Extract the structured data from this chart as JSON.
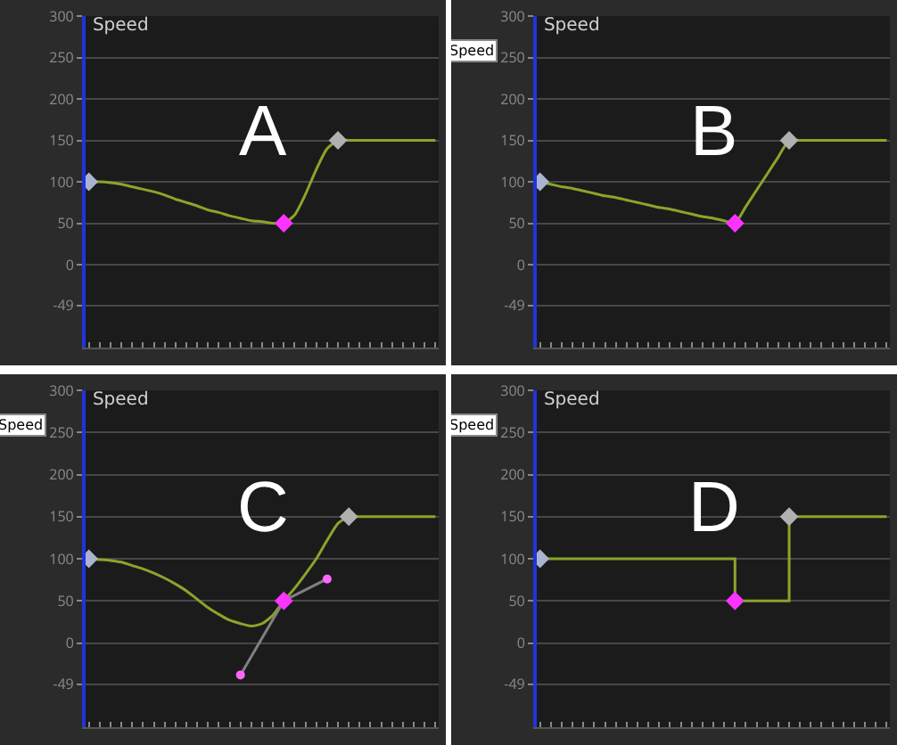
{
  "chart_data": [
    {
      "type": "line",
      "title": "Speed",
      "annotations": [
        "A"
      ],
      "categories": [
        null,
        null,
        null,
        null,
        null,
        null,
        null,
        null,
        null,
        null,
        null,
        null,
        null,
        null,
        null,
        null,
        null,
        null,
        null,
        null,
        null,
        null,
        null,
        null,
        null,
        null,
        null,
        null,
        null,
        null,
        null,
        null,
        null
      ],
      "series": [
        {
          "color": "#8aa52a",
          "values": [
            100,
            100,
            99,
            97,
            94,
            91,
            88,
            84,
            79,
            75,
            71,
            66,
            63,
            59,
            56,
            53,
            52,
            50,
            50,
            60,
            85,
            115,
            140,
            150,
            150,
            150,
            150,
            150,
            150,
            150,
            150,
            150,
            150
          ]
        },
        {
          "type": "scatter",
          "marker": "diamond",
          "values": [
            100,
            null,
            null,
            null,
            null,
            null,
            null,
            null,
            null,
            null,
            null,
            null,
            null,
            null,
            null,
            null,
            null,
            null,
            50,
            null,
            null,
            null,
            null,
            150,
            null,
            null,
            null,
            null,
            null,
            null,
            null,
            null,
            null
          ],
          "colors": [
            "#a8b4d0",
            null,
            null,
            null,
            null,
            null,
            null,
            null,
            null,
            null,
            null,
            null,
            null,
            null,
            null,
            null,
            null,
            null,
            "#ff33ff",
            null,
            null,
            null,
            null,
            "#b0b0b0",
            null,
            null,
            null,
            null,
            null,
            null,
            null,
            null,
            null
          ]
        }
      ],
      "ylim": [
        -100,
        300
      ],
      "yticks": [
        300,
        250,
        200,
        150,
        100,
        50,
        0,
        -49
      ],
      "grid": "y",
      "tick_labels": "y"
    },
    {
      "type": "line",
      "title": "Speed",
      "annotations": [
        "B",
        "Speed"
      ],
      "categories": [
        null,
        null,
        null,
        null,
        null,
        null,
        null,
        null,
        null,
        null,
        null,
        null,
        null,
        null,
        null,
        null,
        null,
        null,
        null,
        null,
        null,
        null,
        null,
        null,
        null,
        null,
        null,
        null,
        null,
        null,
        null,
        null,
        null
      ],
      "series": [
        {
          "color": "#8aa52a",
          "values": [
            100,
            97,
            94,
            92,
            89,
            86,
            83,
            81,
            78,
            75,
            72,
            69,
            67,
            64,
            61,
            58,
            56,
            53,
            50,
            70,
            90,
            110,
            130,
            150,
            150,
            150,
            150,
            150,
            150,
            150,
            150,
            150,
            150
          ]
        },
        {
          "type": "scatter",
          "marker": "diamond",
          "values": [
            100,
            null,
            null,
            null,
            null,
            null,
            null,
            null,
            null,
            null,
            null,
            null,
            null,
            null,
            null,
            null,
            null,
            null,
            50,
            null,
            null,
            null,
            null,
            150,
            null,
            null,
            null,
            null,
            null,
            null,
            null,
            null,
            null
          ],
          "colors": [
            "#a8b4d0",
            null,
            null,
            null,
            null,
            null,
            null,
            null,
            null,
            null,
            null,
            null,
            null,
            null,
            null,
            null,
            null,
            null,
            "#ff33ff",
            null,
            null,
            null,
            null,
            "#b0b0b0",
            null,
            null,
            null,
            null,
            null,
            null,
            null,
            null,
            null
          ]
        }
      ],
      "ylim": [
        -100,
        300
      ],
      "yticks": [
        300,
        250,
        200,
        150,
        100,
        50,
        0,
        -49
      ],
      "grid": "y",
      "tick_labels": "y"
    },
    {
      "type": "line",
      "title": "Speed",
      "annotations": [
        "C",
        "Speed"
      ],
      "categories": [
        null,
        null,
        null,
        null,
        null,
        null,
        null,
        null,
        null,
        null,
        null,
        null,
        null,
        null,
        null,
        null,
        null,
        null,
        null,
        null,
        null,
        null,
        null,
        null,
        null,
        null,
        null,
        null,
        null,
        null,
        null,
        null,
        null
      ],
      "series": [
        {
          "color": "#8aa52a",
          "values": [
            100,
            99,
            98,
            96,
            92,
            88,
            83,
            77,
            70,
            62,
            52,
            42,
            34,
            27,
            23,
            20,
            23,
            33,
            50,
            65,
            82,
            100,
            122,
            142,
            150,
            150,
            150,
            150,
            150,
            150,
            150,
            150,
            150
          ]
        },
        {
          "type": "line",
          "color": "#808080",
          "values": [
            null,
            null,
            null,
            null,
            null,
            null,
            null,
            null,
            null,
            null,
            null,
            null,
            null,
            null,
            -38,
            null,
            null,
            null,
            50,
            null,
            null,
            null,
            76,
            null,
            null,
            null,
            null,
            null,
            null,
            null,
            null,
            null,
            null
          ]
        },
        {
          "type": "scatter",
          "marker": "circle",
          "color": "#ff66ff",
          "values": [
            null,
            null,
            null,
            null,
            null,
            null,
            null,
            null,
            null,
            null,
            null,
            null,
            null,
            null,
            -38,
            null,
            null,
            null,
            null,
            null,
            null,
            null,
            76,
            null,
            null,
            null,
            null,
            null,
            null,
            null,
            null,
            null,
            null
          ]
        },
        {
          "type": "scatter",
          "marker": "diamond",
          "values": [
            100,
            null,
            null,
            null,
            null,
            null,
            null,
            null,
            null,
            null,
            null,
            null,
            null,
            null,
            null,
            null,
            null,
            null,
            50,
            null,
            null,
            null,
            null,
            null,
            150,
            null,
            null,
            null,
            null,
            null,
            null,
            null,
            null
          ],
          "colors": [
            "#a8b4d0",
            null,
            null,
            null,
            null,
            null,
            null,
            null,
            null,
            null,
            null,
            null,
            null,
            null,
            null,
            null,
            null,
            null,
            "#ff33ff",
            null,
            null,
            null,
            null,
            null,
            "#b0b0b0",
            null,
            null,
            null,
            null,
            null,
            null,
            null,
            null
          ]
        }
      ],
      "ylim": [
        -100,
        300
      ],
      "yticks": [
        300,
        250,
        200,
        150,
        100,
        50,
        0,
        -49
      ],
      "grid": "y",
      "tick_labels": "y"
    },
    {
      "type": "step",
      "title": "Speed",
      "annotations": [
        "D",
        "Speed"
      ],
      "categories": [
        null,
        null,
        null,
        null,
        null,
        null,
        null,
        null,
        null,
        null,
        null,
        null,
        null,
        null,
        null,
        null,
        null,
        null,
        null,
        null,
        null,
        null,
        null,
        null,
        null,
        null,
        null,
        null,
        null,
        null,
        null,
        null,
        null
      ],
      "series": [
        {
          "color": "#8aa52a",
          "values": [
            100,
            100,
            100,
            100,
            100,
            100,
            100,
            100,
            100,
            100,
            100,
            100,
            100,
            100,
            100,
            100,
            100,
            100,
            50,
            50,
            50,
            50,
            50,
            150,
            150,
            150,
            150,
            150,
            150,
            150,
            150,
            150,
            150
          ]
        },
        {
          "type": "scatter",
          "marker": "diamond",
          "values": [
            100,
            null,
            null,
            null,
            null,
            null,
            null,
            null,
            null,
            null,
            null,
            null,
            null,
            null,
            null,
            null,
            null,
            null,
            50,
            null,
            null,
            null,
            null,
            150,
            null,
            null,
            null,
            null,
            null,
            null,
            null,
            null,
            null
          ],
          "colors": [
            "#a8b4d0",
            null,
            null,
            null,
            null,
            null,
            null,
            null,
            null,
            null,
            null,
            null,
            null,
            null,
            null,
            null,
            null,
            null,
            "#ff33ff",
            null,
            null,
            null,
            null,
            "#b0b0b0",
            null,
            null,
            null,
            null,
            null,
            null,
            null,
            null,
            null
          ]
        }
      ],
      "ylim": [
        -100,
        300
      ],
      "yticks": [
        300,
        250,
        200,
        150,
        100,
        50,
        0,
        -49
      ],
      "grid": "y",
      "tick_labels": "y"
    }
  ]
}
